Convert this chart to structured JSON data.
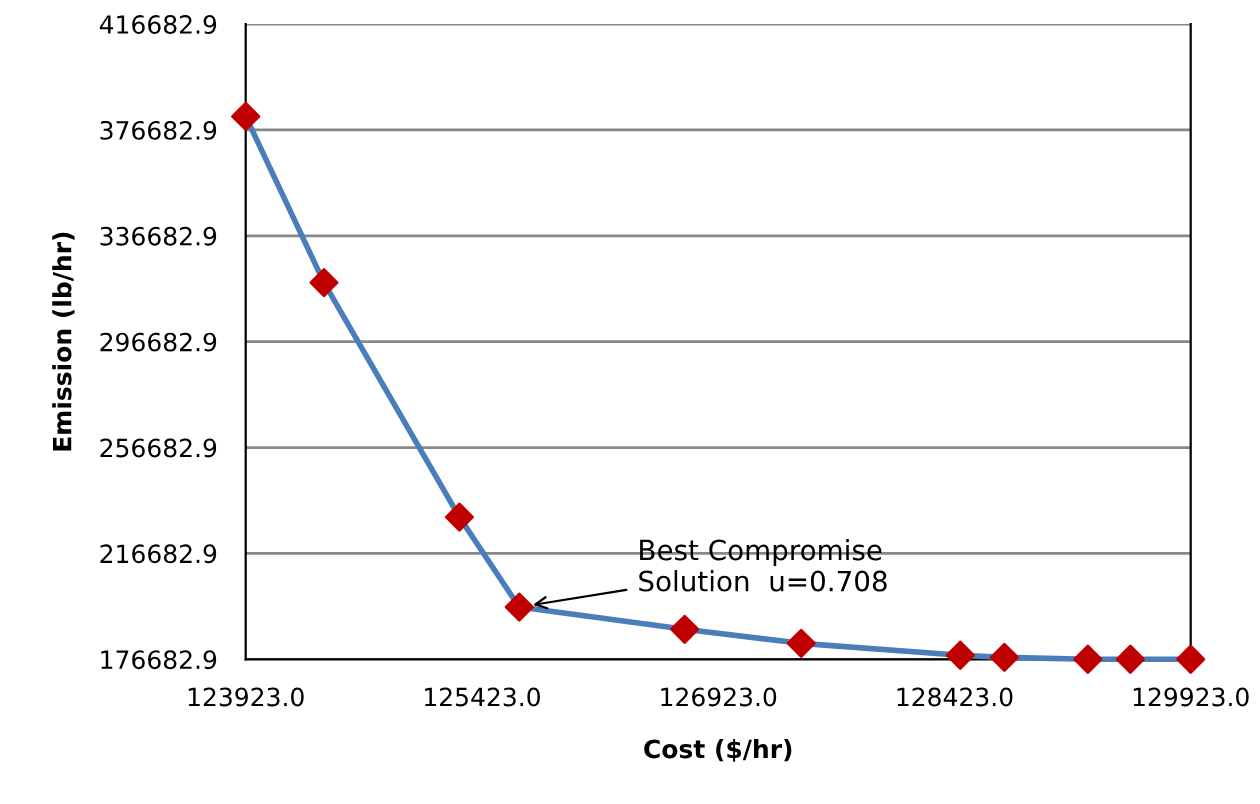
{
  "chart_data": {
    "type": "line",
    "xlabel": "Cost ($/hr)",
    "ylabel": "Emission (lb/hr)",
    "series": [
      {
        "color": "#4a7ebb",
        "colors": [
          "#c00000",
          "#c00000",
          "#c00000",
          "#c00000",
          "#c00000",
          "#c00000",
          "#c00000",
          "#c00000",
          "#c00000",
          "#c00000",
          "#c00000"
        ],
        "x": [
          123923,
          124420,
          125280,
          125660,
          126710,
          127450,
          128460,
          128740,
          129270,
          129540,
          129923
        ],
        "values": [
          381800,
          319000,
          230400,
          196400,
          188000,
          182700,
          178200,
          177400,
          176700,
          176700,
          176700
        ]
      }
    ],
    "xlim": [
      123923.0,
      129923.0
    ],
    "xticks": [
      {
        "value": 123923.0,
        "label": "123923.0"
      },
      {
        "value": 125423.0,
        "label": "125423.0"
      },
      {
        "value": 126923.0,
        "label": "126923.0"
      },
      {
        "value": 128423.0,
        "label": "128423.0"
      },
      {
        "value": 129923.0,
        "label": "129923.0"
      }
    ],
    "ylim": [
      176682.9,
      416682.9
    ],
    "yticks": [
      176682.9,
      216682.9,
      256682.9,
      296682.9,
      336682.9,
      376682.9,
      416682.9
    ],
    "annotations": [
      {
        "text": "Best Compromise\nSolution  u=0.708",
        "x": 125660,
        "y": 196400
      }
    ],
    "grid": "y",
    "marker": "diamond",
    "line_style": "solid",
    "legend": false
  }
}
